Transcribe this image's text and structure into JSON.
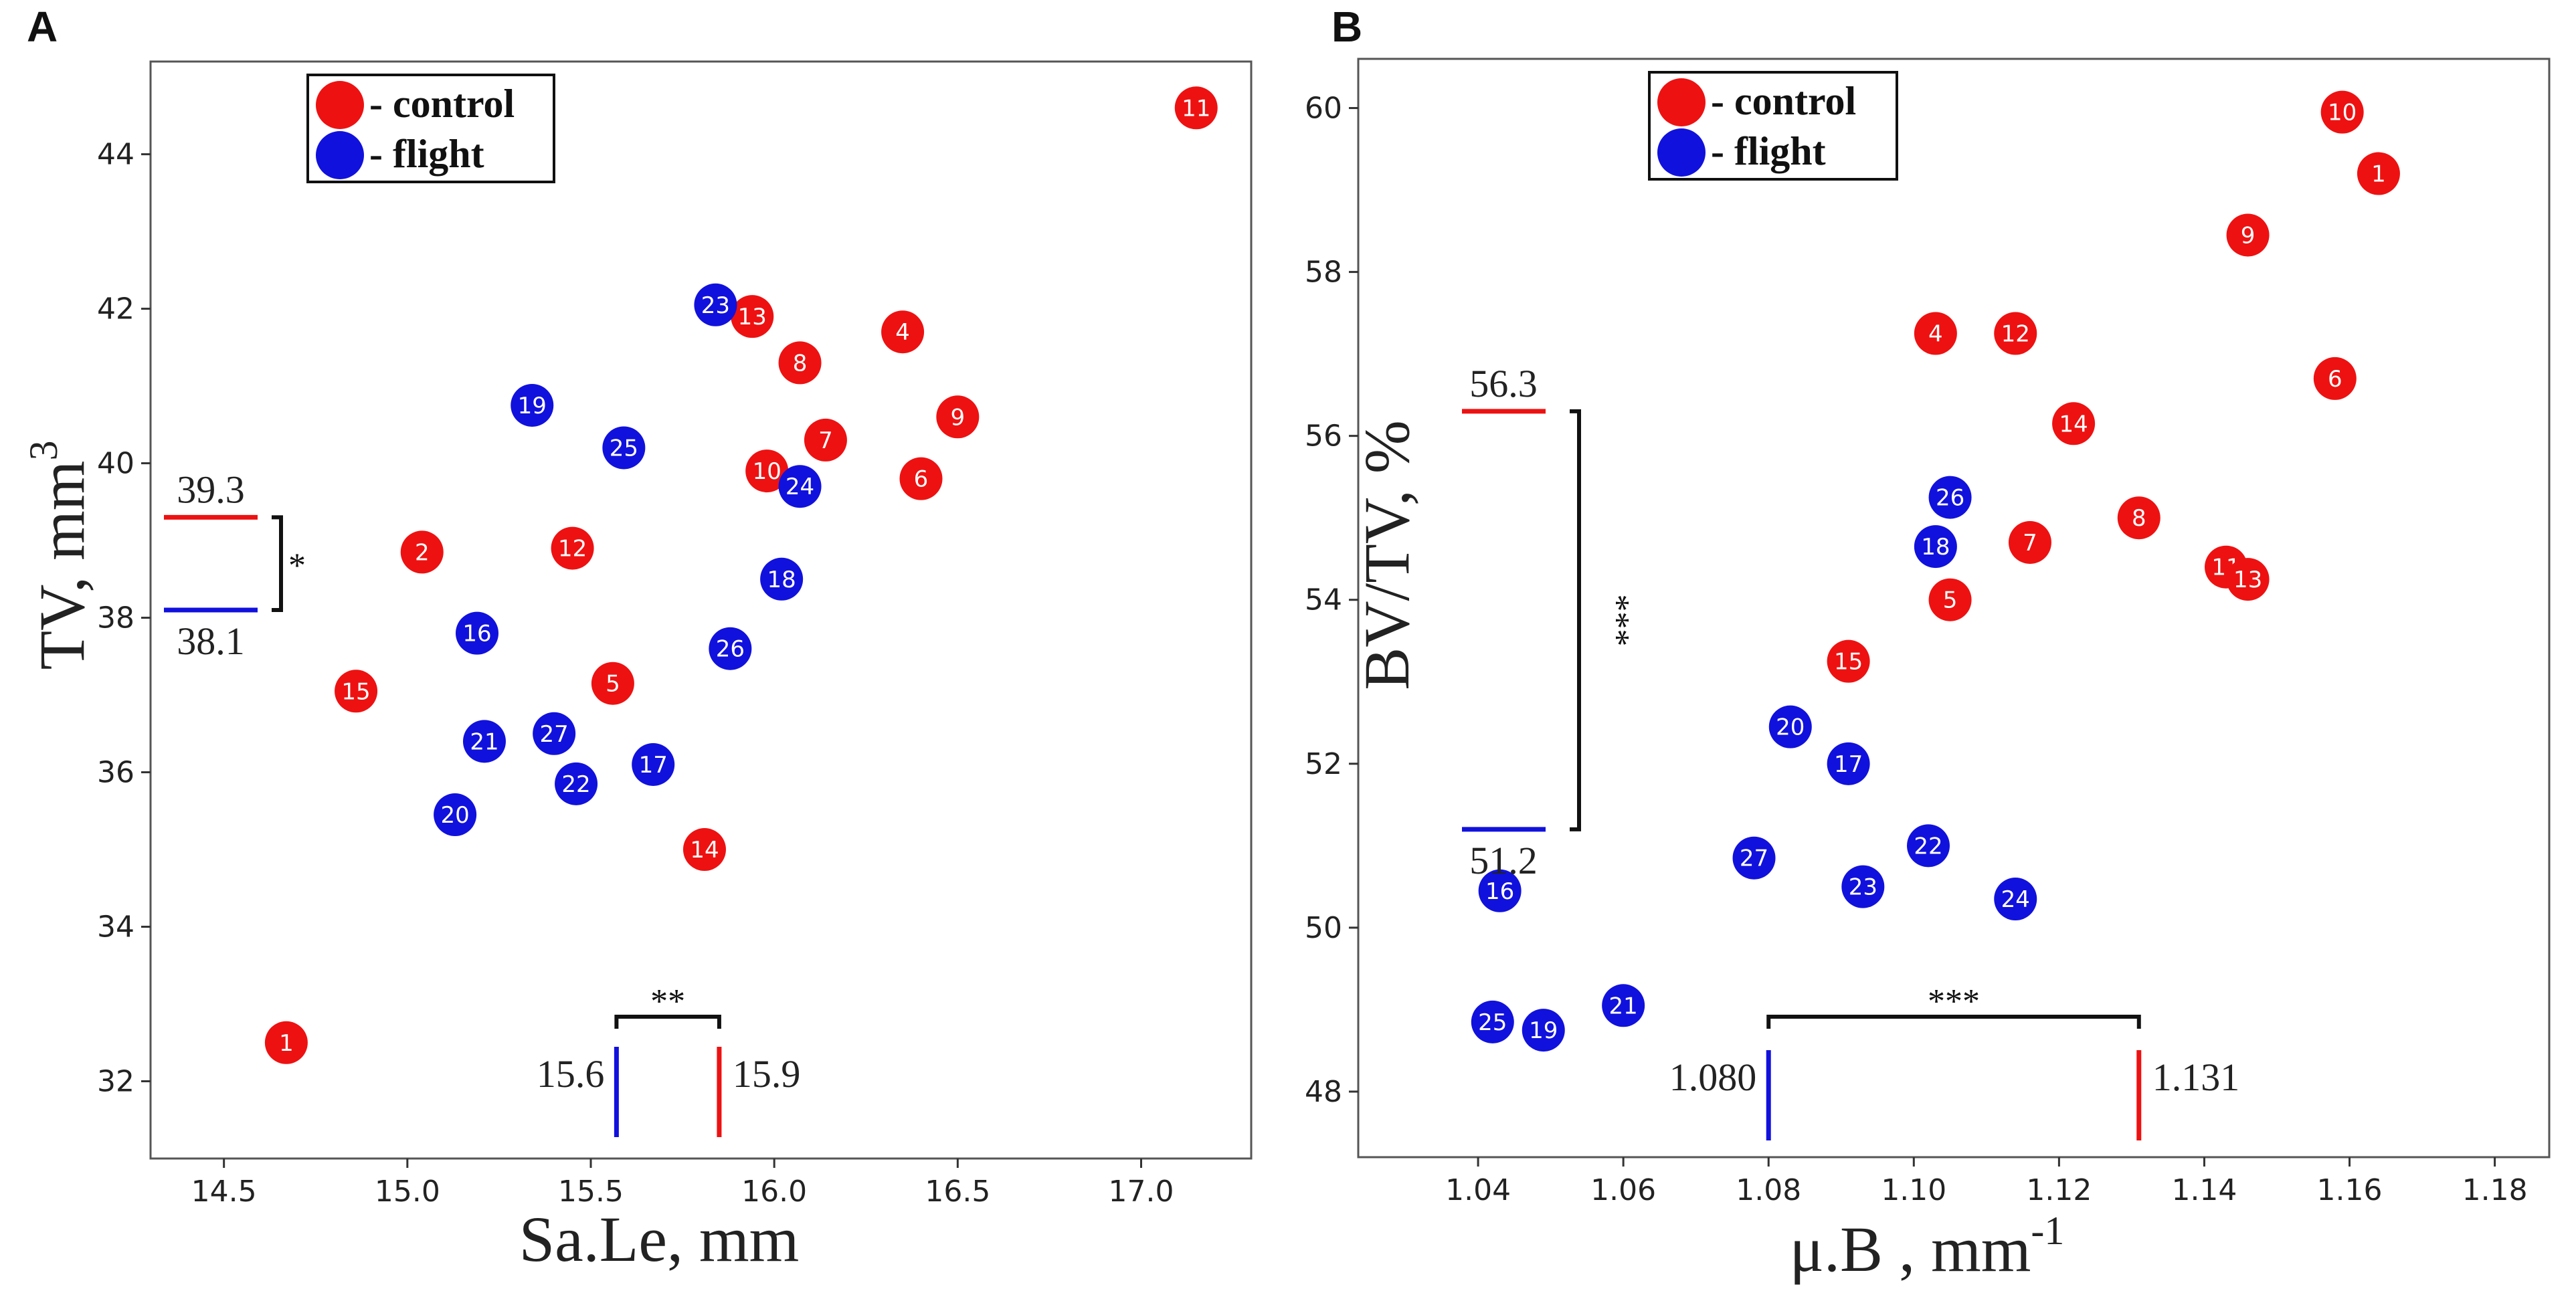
{
  "colors": {
    "control": "#ee1111",
    "flight": "#1111dd"
  },
  "legend": {
    "control_label": "- control",
    "flight_label": "- flight"
  },
  "chart_data": [
    {
      "panel": "A",
      "type": "scatter",
      "xlabel": "Sa.Le, mm",
      "ylabel_main": "TV, mm",
      "ylabel_sup": "3",
      "xlim": [
        14.3,
        17.3
      ],
      "ylim": [
        31.0,
        45.2
      ],
      "xticks": [
        14.5,
        15.0,
        15.5,
        16.0,
        16.5,
        17.0
      ],
      "xtick_labels": [
        "14.5",
        "15.0",
        "15.5",
        "16.0",
        "16.5",
        "17.0"
      ],
      "yticks": [
        32,
        34,
        36,
        38,
        40,
        42,
        44
      ],
      "ytick_labels": [
        "32",
        "34",
        "36",
        "38",
        "40",
        "42",
        "44"
      ],
      "series": [
        {
          "name": "control",
          "points": [
            {
              "id": "1",
              "x": 14.67,
              "y": 32.5
            },
            {
              "id": "2",
              "x": 15.04,
              "y": 38.85
            },
            {
              "id": "4",
              "x": 16.35,
              "y": 41.7
            },
            {
              "id": "5",
              "x": 15.56,
              "y": 37.15
            },
            {
              "id": "6",
              "x": 16.4,
              "y": 39.8
            },
            {
              "id": "7",
              "x": 16.14,
              "y": 40.3
            },
            {
              "id": "8",
              "x": 16.07,
              "y": 41.3
            },
            {
              "id": "9",
              "x": 16.5,
              "y": 40.6
            },
            {
              "id": "10",
              "x": 15.98,
              "y": 39.9
            },
            {
              "id": "11",
              "x": 17.15,
              "y": 44.6
            },
            {
              "id": "12",
              "x": 15.45,
              "y": 38.9
            },
            {
              "id": "13",
              "x": 15.94,
              "y": 41.9
            },
            {
              "id": "14",
              "x": 15.81,
              "y": 35.0
            },
            {
              "id": "15",
              "x": 14.86,
              "y": 37.05
            }
          ]
        },
        {
          "name": "flight",
          "points": [
            {
              "id": "16",
              "x": 15.19,
              "y": 37.8
            },
            {
              "id": "17",
              "x": 15.67,
              "y": 36.1
            },
            {
              "id": "18",
              "x": 16.02,
              "y": 38.5
            },
            {
              "id": "19",
              "x": 15.34,
              "y": 40.75
            },
            {
              "id": "20",
              "x": 15.13,
              "y": 35.45
            },
            {
              "id": "21",
              "x": 15.21,
              "y": 36.4
            },
            {
              "id": "22",
              "x": 15.46,
              "y": 35.85
            },
            {
              "id": "23",
              "x": 15.84,
              "y": 42.05
            },
            {
              "id": "24",
              "x": 16.07,
              "y": 39.7
            },
            {
              "id": "25",
              "x": 15.59,
              "y": 40.2
            },
            {
              "id": "26",
              "x": 15.88,
              "y": 37.6
            },
            {
              "id": "27",
              "x": 15.4,
              "y": 36.5
            }
          ]
        }
      ],
      "y_means": {
        "control": 39.3,
        "flight": 38.1,
        "control_label": "39.3",
        "flight_label": "38.1",
        "significance": "*"
      },
      "x_means": {
        "control": 15.85,
        "flight": 15.57,
        "control_label": "15.9",
        "flight_label": "15.6",
        "significance": "**"
      }
    },
    {
      "panel": "B",
      "type": "scatter",
      "xlabel": "μ.B , mm",
      "xlabel_sup": "-1",
      "ylabel_main": "BV/TV, %",
      "xlim": [
        1.0235,
        1.1875
      ],
      "ylim": [
        47.2,
        60.6
      ],
      "xticks": [
        1.04,
        1.06,
        1.08,
        1.1,
        1.12,
        1.14,
        1.16,
        1.18
      ],
      "xtick_labels": [
        "1.04",
        "1.06",
        "1.08",
        "1.10",
        "1.12",
        "1.14",
        "1.16",
        "1.18"
      ],
      "yticks": [
        48,
        50,
        52,
        54,
        56,
        58,
        60
      ],
      "ytick_labels": [
        "48",
        "50",
        "52",
        "54",
        "56",
        "58",
        "60"
      ],
      "series": [
        {
          "name": "control",
          "points": [
            {
              "id": "1",
              "x": 1.164,
              "y": 59.2
            },
            {
              "id": "4",
              "x": 1.103,
              "y": 57.25
            },
            {
              "id": "5",
              "x": 1.105,
              "y": 54.0
            },
            {
              "id": "6",
              "x": 1.158,
              "y": 56.7
            },
            {
              "id": "7",
              "x": 1.116,
              "y": 54.7
            },
            {
              "id": "8",
              "x": 1.131,
              "y": 55.0
            },
            {
              "id": "9",
              "x": 1.146,
              "y": 58.45
            },
            {
              "id": "10",
              "x": 1.159,
              "y": 59.95
            },
            {
              "id": "11",
              "x": 1.143,
              "y": 54.4
            },
            {
              "id": "12",
              "x": 1.114,
              "y": 57.25
            },
            {
              "id": "13",
              "x": 1.146,
              "y": 54.25
            },
            {
              "id": "14",
              "x": 1.122,
              "y": 56.15
            },
            {
              "id": "15",
              "x": 1.091,
              "y": 53.25
            }
          ]
        },
        {
          "name": "flight",
          "points": [
            {
              "id": "16",
              "x": 1.043,
              "y": 50.45
            },
            {
              "id": "17",
              "x": 1.091,
              "y": 52.0
            },
            {
              "id": "18",
              "x": 1.103,
              "y": 54.65
            },
            {
              "id": "19",
              "x": 1.049,
              "y": 48.75
            },
            {
              "id": "20",
              "x": 1.083,
              "y": 52.45
            },
            {
              "id": "21",
              "x": 1.06,
              "y": 49.05
            },
            {
              "id": "22",
              "x": 1.102,
              "y": 51.0
            },
            {
              "id": "23",
              "x": 1.093,
              "y": 50.5
            },
            {
              "id": "24",
              "x": 1.114,
              "y": 50.35
            },
            {
              "id": "25",
              "x": 1.042,
              "y": 48.85
            },
            {
              "id": "26",
              "x": 1.105,
              "y": 55.25
            },
            {
              "id": "27",
              "x": 1.078,
              "y": 50.85
            }
          ]
        }
      ],
      "y_means": {
        "control": 56.3,
        "flight": 51.2,
        "control_label": "56.3",
        "flight_label": "51.2",
        "significance": "***"
      },
      "x_means": {
        "control": 1.131,
        "flight": 1.08,
        "control_label": "1.131",
        "flight_label": "1.080",
        "significance": "***"
      }
    }
  ]
}
